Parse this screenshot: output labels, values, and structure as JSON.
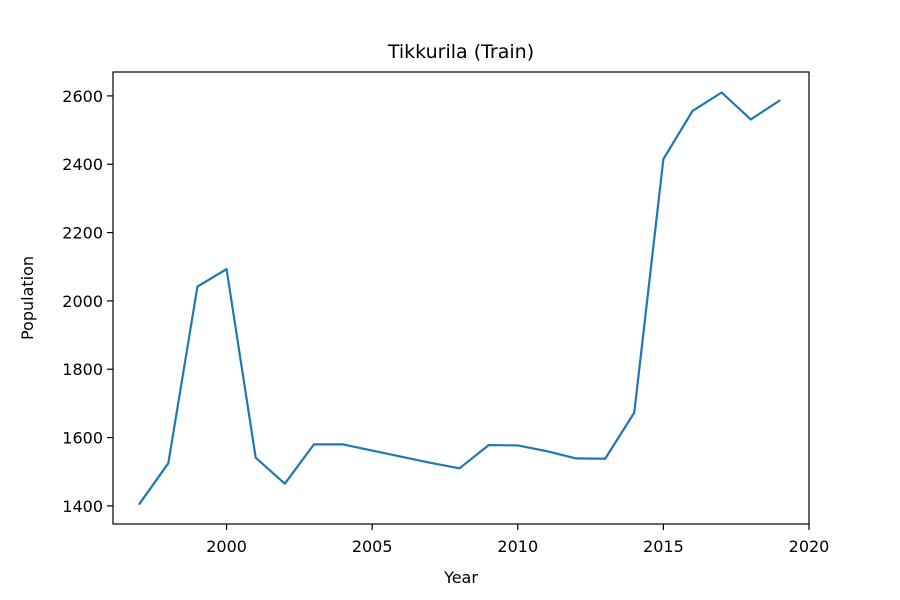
{
  "chart_data": {
    "type": "line",
    "title": "Tikkurila (Train)",
    "xlabel": "Year",
    "ylabel": "Population",
    "xlim": [
      1996.1,
      2020.0
    ],
    "ylim": [
      1347,
      2670
    ],
    "xticks": [
      2000,
      2005,
      2010,
      2015,
      2020
    ],
    "yticks": [
      1400,
      1600,
      1800,
      2000,
      2200,
      2400,
      2600
    ],
    "grid": false,
    "series": [
      {
        "color": "#1f77b4",
        "x": [
          1997,
          1998,
          1999,
          2000,
          2001,
          2002,
          2003,
          2004,
          2005,
          2006,
          2007,
          2008,
          2009,
          2010,
          2011,
          2012,
          2013,
          2014,
          2015,
          2016,
          2017,
          2018,
          2019
        ],
        "y": [
          1405,
          1525,
          2042,
          2093,
          1541,
          1465,
          1580,
          1580,
          1562,
          1544,
          1526,
          1510,
          1578,
          1577,
          1560,
          1539,
          1538,
          1673,
          2415,
          2556,
          2610,
          2531,
          2587
        ]
      }
    ]
  }
}
